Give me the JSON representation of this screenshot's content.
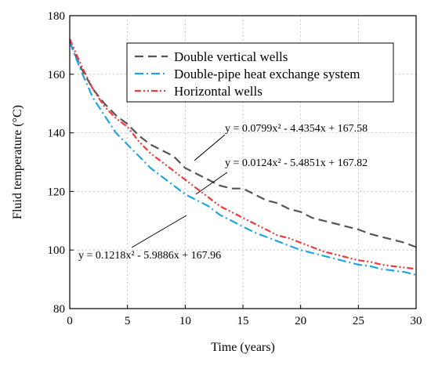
{
  "chart_data": {
    "type": "line",
    "title": "",
    "xlabel": "Time (years)",
    "ylabel": "Fluid temperature (°C)",
    "xlim": [
      0,
      30
    ],
    "ylim": [
      80,
      180
    ],
    "xticks": [
      0,
      5,
      10,
      15,
      20,
      25,
      30
    ],
    "yticks": [
      80,
      100,
      120,
      140,
      160,
      180
    ],
    "xtick_labels": [
      "0",
      "5",
      "10",
      "15",
      "20",
      "25",
      "30"
    ],
    "ytick_labels": [
      "80",
      "100",
      "120",
      "140",
      "160",
      "180"
    ],
    "grid": true,
    "legend_position": "top-right",
    "series": [
      {
        "name": "Double vertical wells",
        "color": "#555555",
        "style": "dash",
        "x": [
          0,
          1,
          2,
          3,
          4,
          5,
          6,
          7,
          8,
          9,
          10,
          11,
          12,
          13,
          14,
          15,
          16,
          17,
          18,
          19,
          20,
          21,
          22,
          23,
          24,
          25,
          26,
          27,
          28,
          29,
          30
        ],
        "y": [
          171,
          162,
          155,
          150,
          146,
          143,
          139,
          136,
          134,
          132,
          128,
          126,
          124,
          122,
          121,
          121,
          119,
          117,
          116,
          114,
          113,
          111,
          110,
          109,
          108,
          107,
          105.5,
          104.5,
          103.5,
          102.5,
          101
        ]
      },
      {
        "name": "Double-pipe heat exchange system",
        "color": "#1fa5e6",
        "style": "dashdot",
        "x": [
          0,
          1,
          2,
          3,
          4,
          5,
          6,
          7,
          8,
          9,
          10,
          11,
          12,
          13,
          14,
          15,
          16,
          17,
          18,
          19,
          20,
          21,
          22,
          23,
          24,
          25,
          26,
          27,
          28,
          29,
          30
        ],
        "y": [
          171,
          161,
          152,
          146,
          140,
          136,
          132,
          128,
          125,
          122,
          119,
          117,
          115,
          112,
          110,
          108,
          106,
          104.5,
          103,
          101.5,
          100,
          99,
          98,
          97,
          96,
          95,
          94.5,
          93.5,
          93,
          92.5,
          91.5
        ]
      },
      {
        "name": "Horizontal wells",
        "color": "#ee3a3a",
        "style": "dashdotdot",
        "x": [
          0,
          1,
          2,
          3,
          4,
          5,
          6,
          7,
          8,
          9,
          10,
          11,
          12,
          13,
          14,
          15,
          16,
          17,
          18,
          19,
          20,
          21,
          22,
          23,
          24,
          25,
          26,
          27,
          28,
          29,
          30
        ],
        "y": [
          172,
          163,
          155,
          149,
          145,
          142,
          137,
          133,
          130,
          127,
          124,
          121,
          118,
          115,
          113,
          111,
          109,
          107,
          105,
          104,
          102.5,
          101,
          99.5,
          98.5,
          97.5,
          96.5,
          96,
          95,
          94.5,
          94,
          93.5
        ]
      }
    ],
    "annotations": [
      {
        "text": "y = 0.0799x² - 4.4354x + 167.58",
        "target_series": 0
      },
      {
        "text": "y = 0.0124x² - 5.4851x + 167.82",
        "target_series": 2
      },
      {
        "text": "y = 0.1218x² - 5.9886x + 167.96",
        "target_series": 1
      }
    ]
  }
}
